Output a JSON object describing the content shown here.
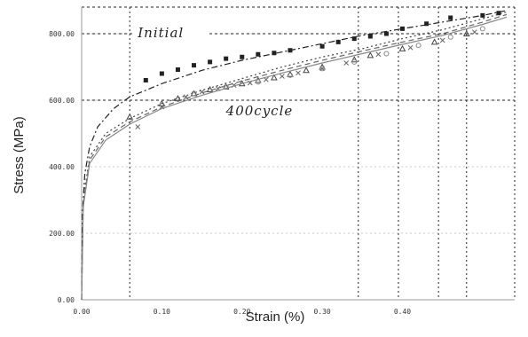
{
  "chart_data": {
    "type": "line",
    "xlabel": "Strain (%)",
    "ylabel": "Stress (MPa)",
    "xlim": [
      0,
      0.54
    ],
    "ylim": [
      0,
      880
    ],
    "x_ticks": [
      {
        "value": 0.0,
        "label": "0.00"
      },
      {
        "value": 0.1,
        "label": "0.10"
      },
      {
        "value": 0.2,
        "label": "0.20"
      },
      {
        "value": 0.3,
        "label": "0.30"
      },
      {
        "value": 0.4,
        "label": "0.40"
      }
    ],
    "y_ticks": [
      {
        "value": 0,
        "label": "0.00"
      },
      {
        "value": 200,
        "label": "200.00"
      },
      {
        "value": 400,
        "label": "400.00"
      },
      {
        "value": 600,
        "label": "600.00"
      },
      {
        "value": 800,
        "label": "800.00"
      }
    ],
    "grid": "dotted",
    "annotations": [
      {
        "text": "Initial",
        "x": 0.07,
        "y": 790
      },
      {
        "text": "400cycle",
        "x": 0.18,
        "y": 555
      }
    ],
    "reference_lines": {
      "horizontal": [
        800,
        600,
        880
      ],
      "vertical": [
        0.06,
        0.345,
        0.395,
        0.445,
        0.48,
        0.54
      ]
    },
    "series": [
      {
        "color": "#222222",
        "style": "dashdot",
        "marker": "square",
        "x": [
          0,
          0.001,
          0.004,
          0.01,
          0.02,
          0.04,
          0.06,
          0.1,
          0.15,
          0.2,
          0.25,
          0.3,
          0.35,
          0.4,
          0.45,
          0.5,
          0.53
        ],
        "y": [
          0,
          260,
          380,
          460,
          520,
          575,
          610,
          650,
          690,
          720,
          745,
          770,
          795,
          815,
          835,
          855,
          870
        ],
        "marker_x": [
          0.08,
          0.1,
          0.12,
          0.14,
          0.16,
          0.18,
          0.2,
          0.22,
          0.24,
          0.26,
          0.3,
          0.32,
          0.34,
          0.36,
          0.38,
          0.4,
          0.43,
          0.46,
          0.5,
          0.52
        ],
        "marker_y": [
          660,
          680,
          692,
          705,
          715,
          725,
          730,
          738,
          742,
          750,
          762,
          775,
          785,
          792,
          800,
          815,
          830,
          848,
          855,
          862
        ]
      },
      {
        "color": "#444444",
        "style": "dotted",
        "marker": "triangle",
        "x": [
          0,
          0.002,
          0.01,
          0.03,
          0.06,
          0.1,
          0.15,
          0.2,
          0.25,
          0.3,
          0.35,
          0.4,
          0.45,
          0.5,
          0.53
        ],
        "y": [
          0,
          300,
          430,
          500,
          545,
          590,
          630,
          665,
          700,
          730,
          755,
          785,
          812,
          845,
          865
        ],
        "marker_x": [
          0.06,
          0.1,
          0.12,
          0.14,
          0.16,
          0.18,
          0.2,
          0.22,
          0.24,
          0.26,
          0.28,
          0.3,
          0.34,
          0.36,
          0.4,
          0.44,
          0.48
        ],
        "marker_y": [
          550,
          590,
          605,
          620,
          632,
          640,
          650,
          660,
          668,
          678,
          690,
          700,
          722,
          735,
          755,
          775,
          800
        ]
      },
      {
        "color": "#666666",
        "style": "dashed",
        "marker": "cross",
        "x": [
          0,
          0.002,
          0.01,
          0.03,
          0.06,
          0.1,
          0.15,
          0.2,
          0.25,
          0.3,
          0.35,
          0.4,
          0.45,
          0.5,
          0.53
        ],
        "y": [
          0,
          290,
          420,
          490,
          535,
          580,
          622,
          658,
          690,
          720,
          748,
          775,
          800,
          835,
          858
        ],
        "marker_x": [
          0.07,
          0.1,
          0.13,
          0.15,
          0.17,
          0.19,
          0.21,
          0.23,
          0.25,
          0.27,
          0.3,
          0.33,
          0.37,
          0.41,
          0.45,
          0.49
        ],
        "marker_y": [
          520,
          580,
          610,
          625,
          635,
          645,
          652,
          662,
          672,
          682,
          695,
          712,
          738,
          758,
          780,
          805
        ]
      },
      {
        "color": "#888888",
        "style": "solid",
        "marker": "circle",
        "x": [
          0,
          0.002,
          0.01,
          0.03,
          0.06,
          0.1,
          0.15,
          0.2,
          0.25,
          0.3,
          0.35,
          0.4,
          0.45,
          0.5,
          0.53
        ],
        "y": [
          0,
          280,
          410,
          480,
          528,
          575,
          615,
          650,
          682,
          712,
          740,
          768,
          795,
          828,
          850
        ],
        "marker_x": [
          0.14,
          0.18,
          0.22,
          0.26,
          0.3,
          0.34,
          0.38,
          0.42,
          0.46,
          0.5
        ],
        "marker_y": [
          620,
          640,
          655,
          675,
          695,
          715,
          740,
          765,
          790,
          815
        ]
      }
    ]
  }
}
